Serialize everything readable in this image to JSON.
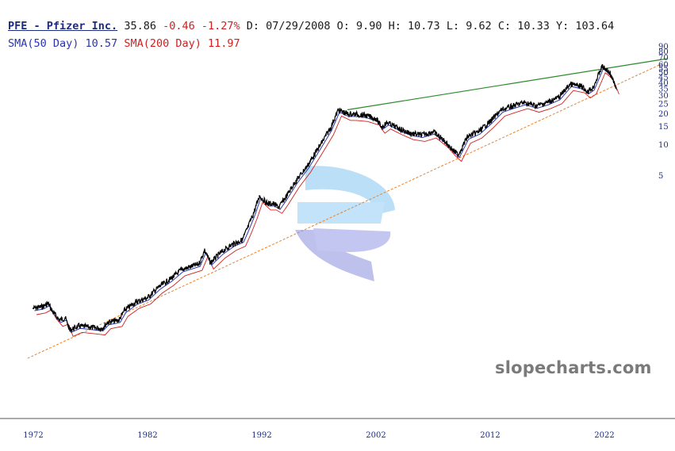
{
  "header": {
    "ticker": "PFE - Pfizer Inc.",
    "price": "35.86",
    "change": "-0.46",
    "change_pct": "-1.27%",
    "date": "D: 07/29/2008",
    "open": "O:  9.90",
    "high": "H: 10.73",
    "low": "L:  9.62",
    "close": "C: 10.33",
    "y": "Y: 103.64",
    "sma50": "SMA(50 Day) 10.57",
    "sma200": "SMA(200 Day) 11.97"
  },
  "watermark": "slopecharts.com",
  "colors": {
    "price": "#000000",
    "sma50": "#2a36b0",
    "sma200": "#d02020",
    "resistance": "#2a8a2a",
    "support": "#e8822a",
    "axis": "#1d2c7e"
  },
  "chart_data": {
    "type": "line",
    "title": "PFE - Pfizer Inc.",
    "y_scale": "log",
    "x_ticks": [
      "1972",
      "1982",
      "1992",
      "2002",
      "2012",
      "2022"
    ],
    "y_ticks": [
      5,
      10,
      15,
      20,
      25,
      30,
      35,
      40,
      45,
      50,
      55,
      60,
      70,
      80,
      90
    ],
    "xlim": [
      1972,
      2028
    ],
    "ylim": [
      0.1,
      90
    ],
    "grid": false,
    "series": [
      {
        "name": "PFE",
        "x": [
          1972,
          1972.8,
          1973.3,
          1973.7,
          1974.3,
          1974.8,
          1975.2,
          1976,
          1977,
          1978,
          1978.5,
          1979.5,
          1980,
          1981,
          1982,
          1983,
          1984,
          1985,
          1986.5,
          1987,
          1987.5,
          1988.5,
          1989.5,
          1990.3,
          1990.8,
          1991.3,
          1991.8,
          1992.5,
          1993,
          1993.5,
          1994,
          1995,
          1996,
          1997,
          1998,
          1998.7,
          1999.5,
          2000,
          2001,
          2002,
          2002.5,
          2003,
          2004,
          2005,
          2006,
          2007,
          2008,
          2008.7,
          2009.2,
          2010,
          2011,
          2012,
          2013,
          2014,
          2015,
          2016,
          2017,
          2018,
          2019,
          2020,
          2020.5,
          2021,
          2021.8,
          2022.5,
          2023
        ],
        "values": [
          0.26,
          0.27,
          0.29,
          0.24,
          0.2,
          0.21,
          0.16,
          0.175,
          0.17,
          0.165,
          0.19,
          0.2,
          0.25,
          0.3,
          0.33,
          0.42,
          0.5,
          0.62,
          0.7,
          0.95,
          0.72,
          0.92,
          1.1,
          1.2,
          1.6,
          2.2,
          3.2,
          2.7,
          2.7,
          2.5,
          3.0,
          4.5,
          6.3,
          9.5,
          14.5,
          22.0,
          20.0,
          20.0,
          19.5,
          18.0,
          15.0,
          16.5,
          14.5,
          13.0,
          12.5,
          13.5,
          11.0,
          9.0,
          8.0,
          12.0,
          13.5,
          17.0,
          22.0,
          24.0,
          26.0,
          24.0,
          26.0,
          29.0,
          39.0,
          37.0,
          33.0,
          36.0,
          58.0,
          50.0,
          35.86
        ]
      }
    ],
    "trendlines": [
      {
        "name": "resistance",
        "x": [
          1999.5,
          2027.5
        ],
        "values": [
          22.0,
          69.0
        ]
      },
      {
        "name": "support",
        "x": [
          1971.5,
          2027.5
        ],
        "values": [
          0.085,
          65.0
        ]
      }
    ]
  }
}
